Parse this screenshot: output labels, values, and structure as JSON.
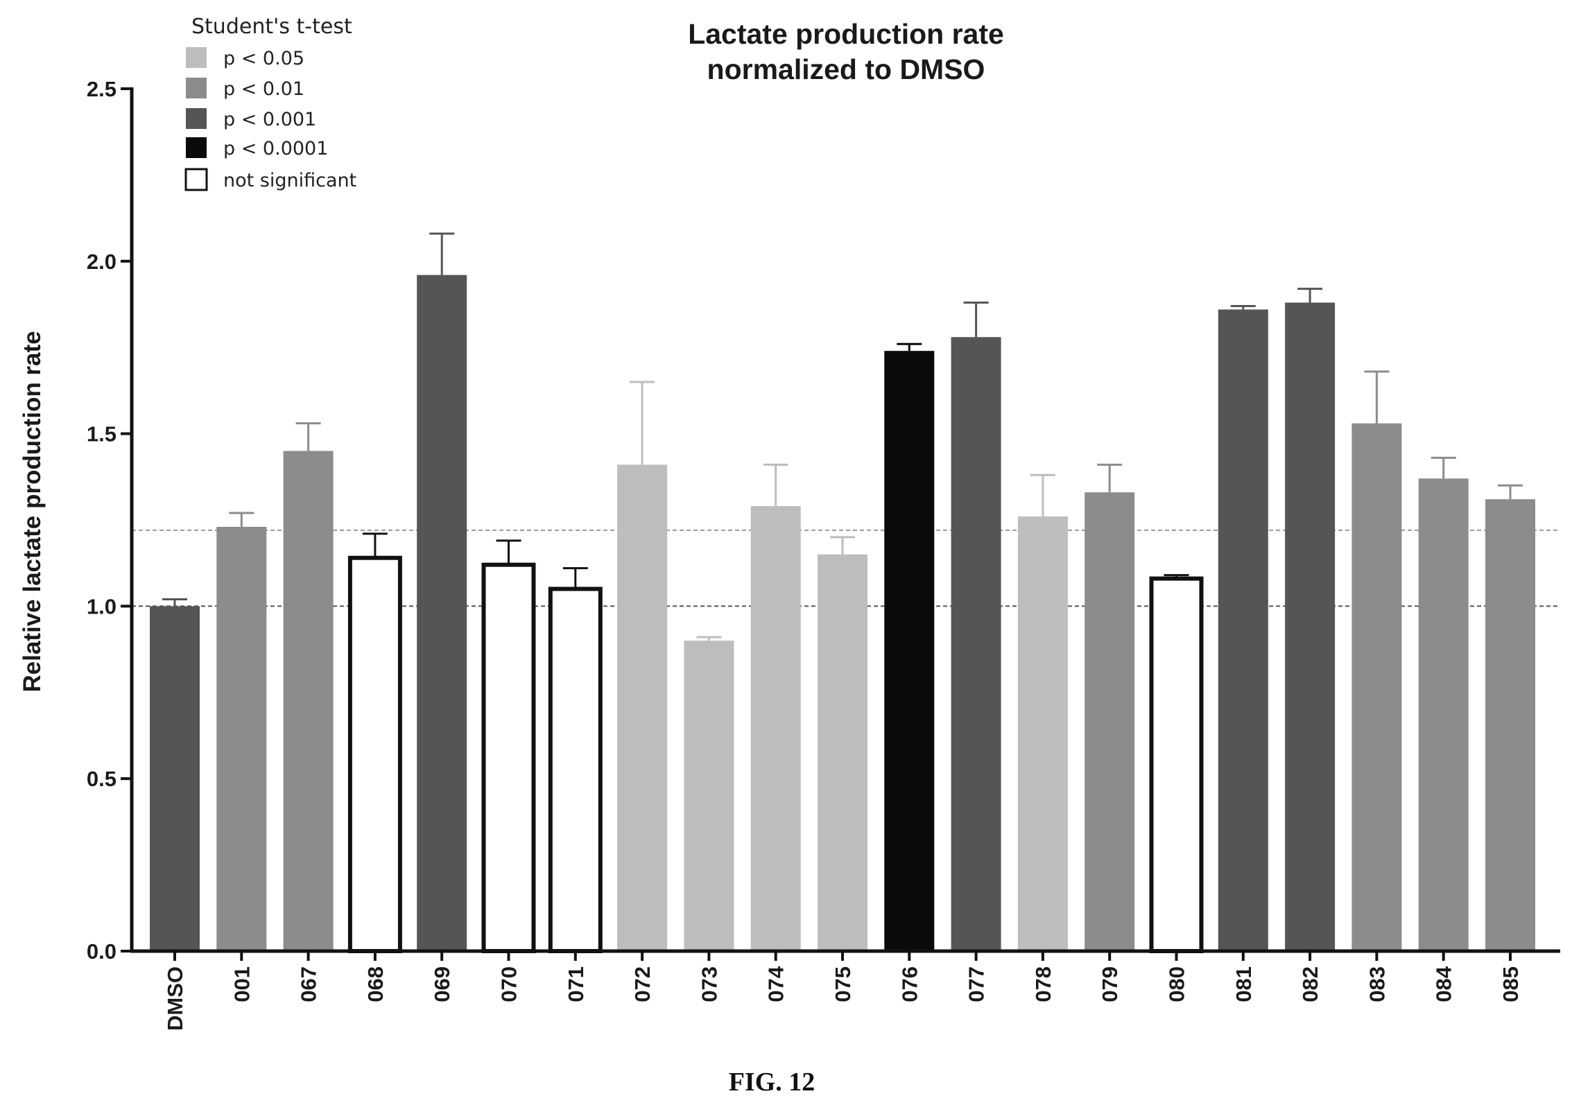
{
  "chart_data": {
    "type": "bar",
    "title": [
      "Lactate production rate",
      "normalized to DMSO"
    ],
    "ylabel": "Relative lactate production rate",
    "xlabel": "",
    "ylim": [
      0,
      2.5
    ],
    "yticks": [
      "0.0",
      "0.5",
      "1.0",
      "1.5",
      "2.0",
      "2.5"
    ],
    "ytick_values": [
      0,
      0.5,
      1.0,
      1.5,
      2.0,
      2.5
    ],
    "reference_lines": [
      1.0,
      1.22
    ],
    "categories": [
      "DMSO",
      "001",
      "067",
      "068",
      "069",
      "070",
      "071",
      "072",
      "073",
      "074",
      "075",
      "076",
      "077",
      "078",
      "079",
      "080",
      "081",
      "082",
      "083",
      "084",
      "085"
    ],
    "values": [
      1.0,
      1.23,
      1.45,
      1.14,
      1.96,
      1.12,
      1.05,
      1.41,
      0.9,
      1.29,
      1.15,
      1.74,
      1.78,
      1.26,
      1.33,
      1.08,
      1.86,
      1.88,
      1.53,
      1.37,
      1.31
    ],
    "errors": [
      0.02,
      0.04,
      0.08,
      0.07,
      0.12,
      0.07,
      0.06,
      0.24,
      0.01,
      0.12,
      0.05,
      0.02,
      0.1,
      0.12,
      0.08,
      0.01,
      0.01,
      0.04,
      0.15,
      0.06,
      0.04
    ],
    "significance": [
      "p < 0.001",
      "p < 0.01",
      "p < 0.01",
      "not significant",
      "p < 0.001",
      "not significant",
      "not significant",
      "p < 0.05",
      "p < 0.05",
      "p < 0.05",
      "p < 0.05",
      "p < 0.0001",
      "p < 0.001",
      "p < 0.05",
      "p < 0.01",
      "not significant",
      "p < 0.001",
      "p < 0.001",
      "p < 0.01",
      "p < 0.01",
      "p < 0.01"
    ],
    "legend": {
      "title": "Student's t-test",
      "placement": "top-left",
      "entries": [
        {
          "label": "p < 0.05",
          "color": "#bdbdbd"
        },
        {
          "label": "p < 0.01",
          "color": "#8c8c8c"
        },
        {
          "label": "p < 0.001",
          "color": "#555555"
        },
        {
          "label": "p < 0.0001",
          "color": "#0a0a0a"
        },
        {
          "label": "not significant",
          "color": "#ffffff"
        }
      ]
    },
    "grid": false
  },
  "caption": "FIG. 12"
}
